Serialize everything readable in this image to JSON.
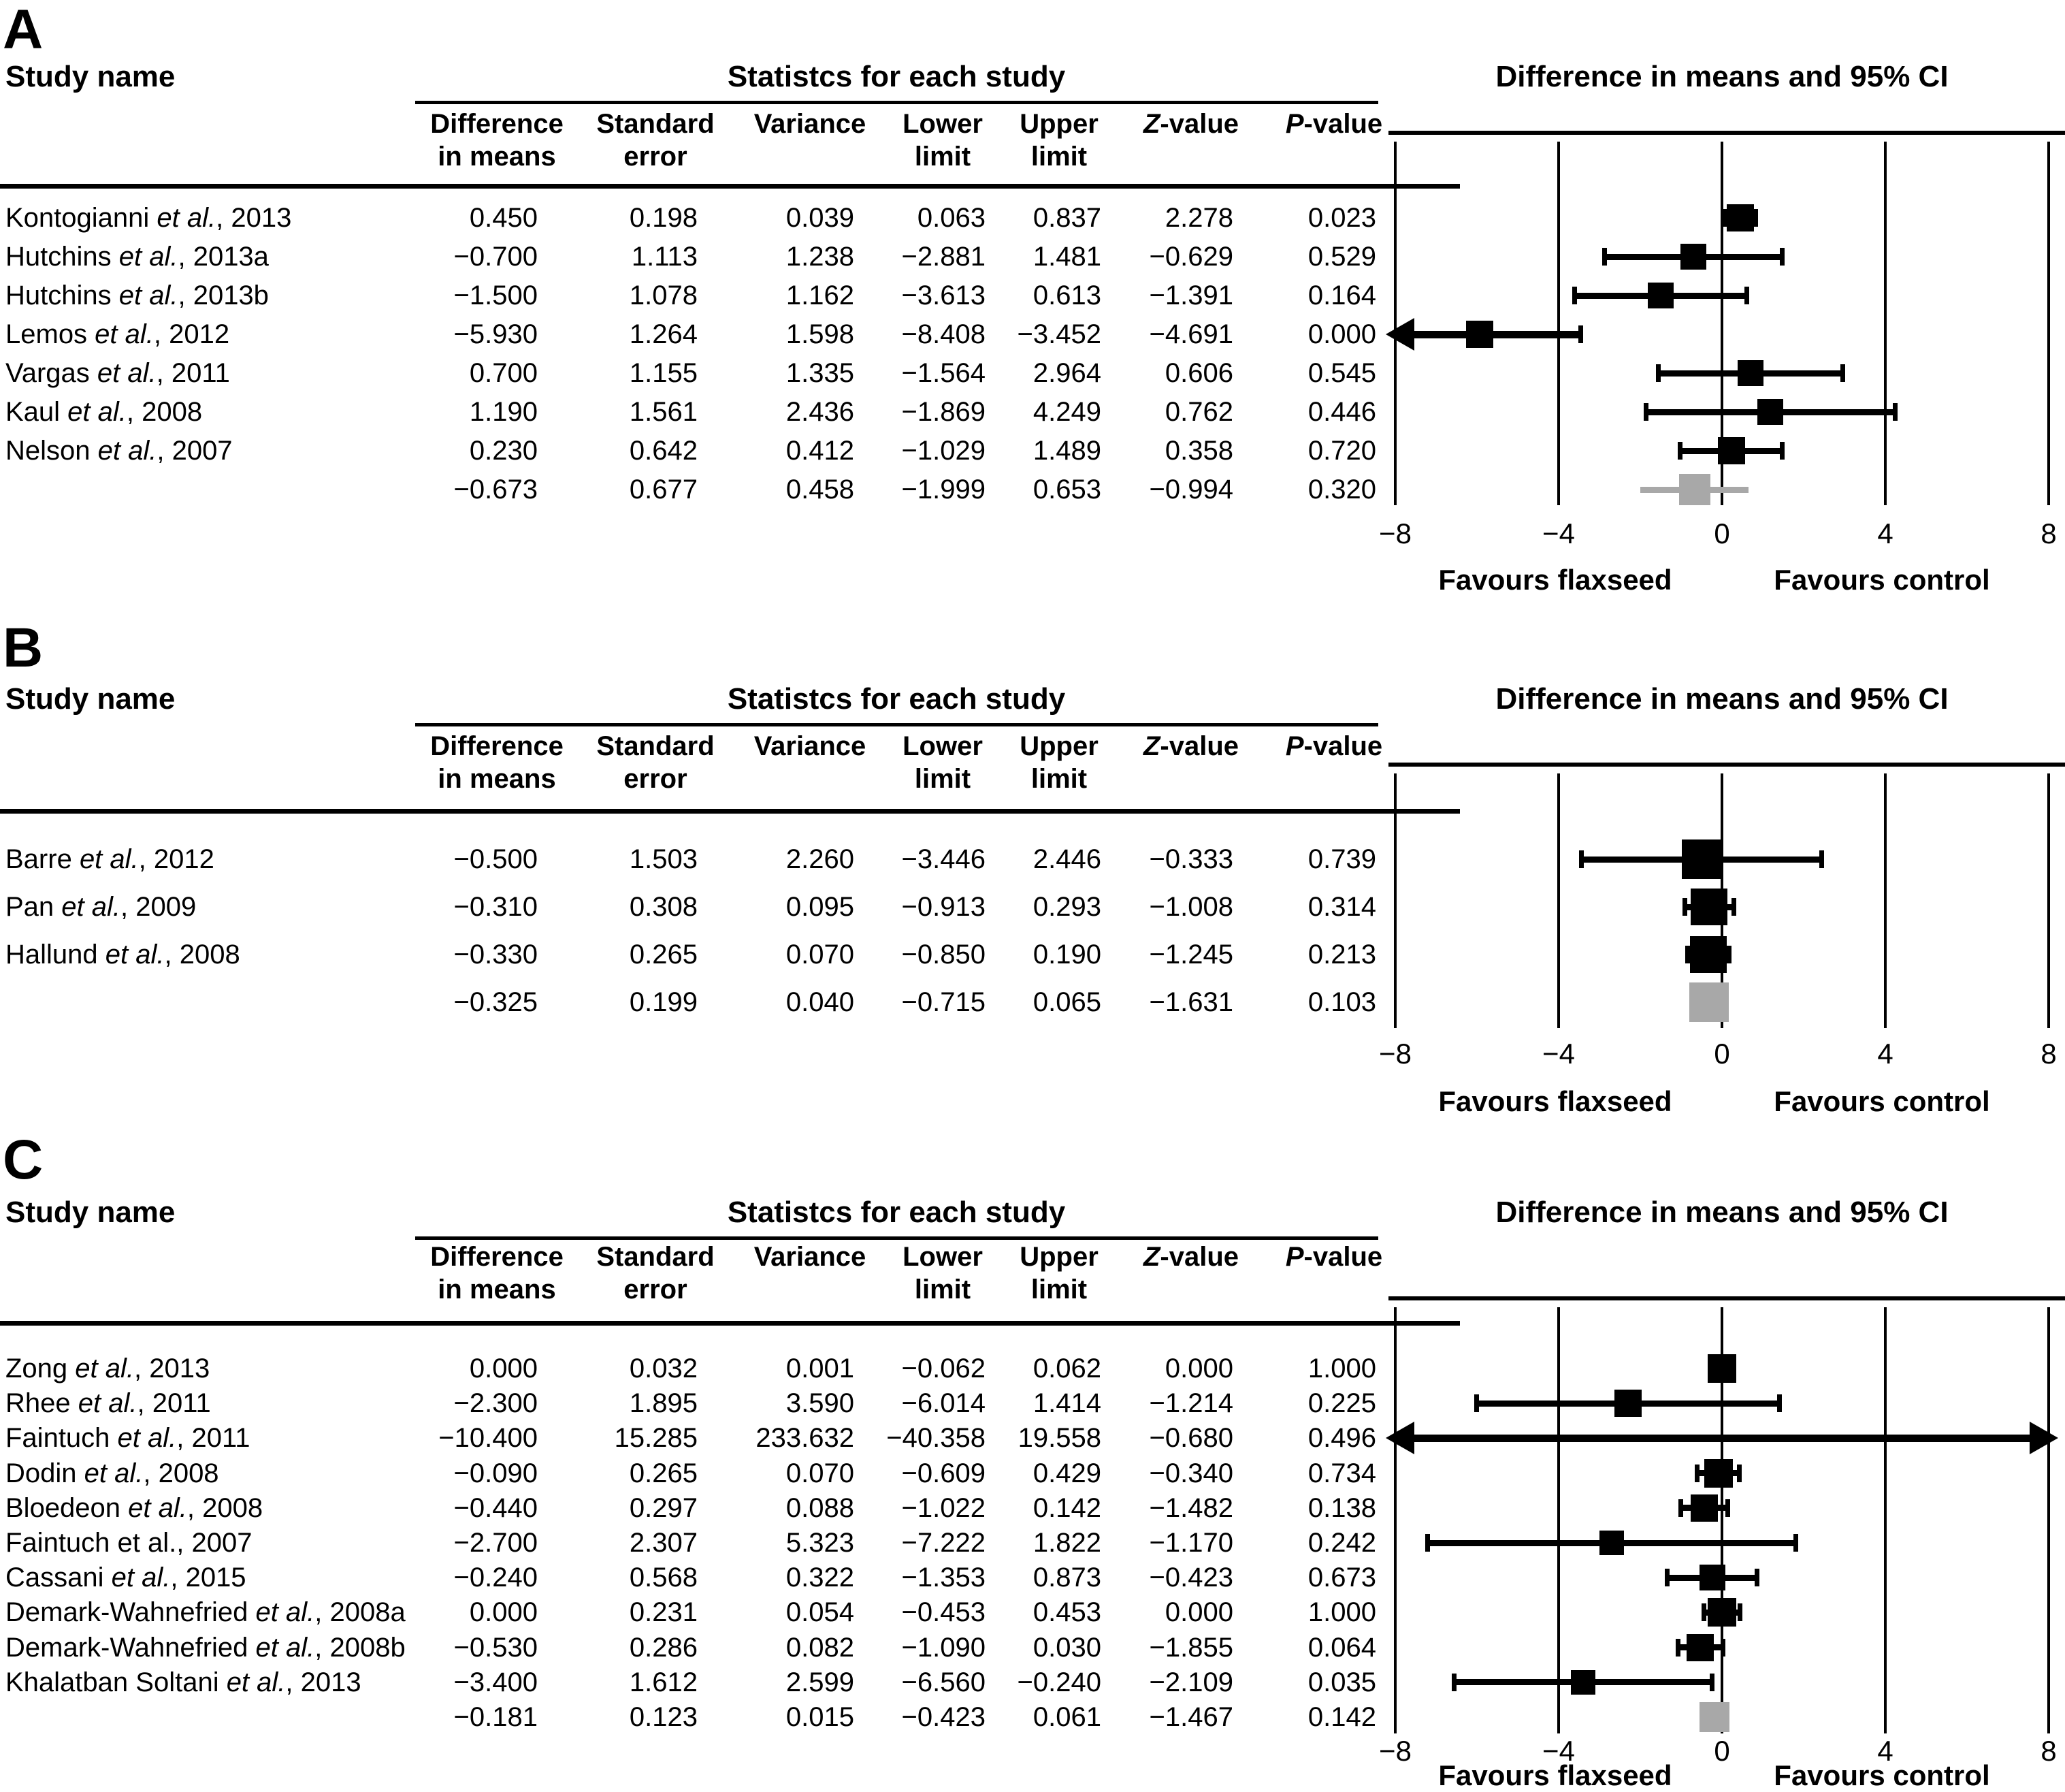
{
  "shared": {
    "study_name_header": "Study name",
    "stats_header": "Statistcs for each study",
    "plot_header": "Difference in means and 95% CI",
    "favours_left": "Favours flaxseed",
    "favours_right": "Favours control",
    "columns": [
      {
        "key": "difference-in-means",
        "line1": "Difference",
        "line2": "in means",
        "line1_italic": ""
      },
      {
        "key": "standard-error",
        "line1": "Standard",
        "line2": "error",
        "line1_italic": ""
      },
      {
        "key": "variance",
        "line1": "Variance",
        "line2": "",
        "line1_italic": ""
      },
      {
        "key": "lower-limit",
        "line1": "Lower",
        "line2": "limit",
        "line1_italic": ""
      },
      {
        "key": "upper-limit",
        "line1": "Upper",
        "line2": "limit",
        "line1_italic": ""
      },
      {
        "key": "z-value",
        "line1": "-value",
        "line2": "",
        "line1_italic": "Z"
      },
      {
        "key": "p-value",
        "line1": "-value",
        "line2": "",
        "line1_italic": "P"
      }
    ],
    "axis": {
      "min": -8,
      "max": 8,
      "ticks": [
        -8,
        -4,
        0,
        4,
        8
      ],
      "tick_labels": [
        "−8",
        "−4",
        "0",
        "4",
        "8"
      ]
    },
    "colors": {
      "effect_square": "#000000",
      "summary_square": "#a8a8a8",
      "summary_line": "#a8a8a8",
      "text": "#000000",
      "background": "#ffffff"
    }
  },
  "chart_data": [
    {
      "type": "scatter",
      "subtype": "forest_plot",
      "panel_label": "A",
      "xlim": [
        -8,
        8
      ],
      "grid": true,
      "stat_fields": [
        "difference_in_means",
        "standard_error",
        "variance",
        "lower_limit",
        "upper_limit",
        "z_value",
        "p_value"
      ],
      "studies": [
        {
          "name_pre": "Kontogianni ",
          "name_italic": "et al.",
          "name_post": ", 2013",
          "stats": [
            "0.450",
            "0.198",
            "0.039",
            "0.063",
            "0.837",
            "2.278",
            "0.023"
          ],
          "marker_size": 40
        },
        {
          "name_pre": "Hutchins ",
          "name_italic": "et al.",
          "name_post": ", 2013a",
          "stats": [
            "−0.700",
            "1.113",
            "1.238",
            "−2.881",
            "1.481",
            "−0.629",
            "0.529"
          ],
          "marker_size": 38
        },
        {
          "name_pre": "Hutchins ",
          "name_italic": "et al.",
          "name_post": ", 2013b",
          "stats": [
            "−1.500",
            "1.078",
            "1.162",
            "−3.613",
            "0.613",
            "−1.391",
            "0.164"
          ],
          "marker_size": 38
        },
        {
          "name_pre": "Lemos ",
          "name_italic": "et al.",
          "name_post": ", 2012",
          "stats": [
            "−5.930",
            "1.264",
            "1.598",
            "−8.408",
            "−3.452",
            "−4.691",
            "0.000"
          ],
          "marker_size": 40
        },
        {
          "name_pre": "Vargas ",
          "name_italic": "et al.",
          "name_post": ", 2011",
          "stats": [
            "0.700",
            "1.155",
            "1.335",
            "−1.564",
            "2.964",
            "0.606",
            "0.545"
          ],
          "marker_size": 38
        },
        {
          "name_pre": "Kaul ",
          "name_italic": "et al.",
          "name_post": ", 2008",
          "stats": [
            "1.190",
            "1.561",
            "2.436",
            "−1.869",
            "4.249",
            "0.762",
            "0.446"
          ],
          "marker_size": 38
        },
        {
          "name_pre": "Nelson ",
          "name_italic": "et al.",
          "name_post": ", 2007",
          "stats": [
            "0.230",
            "0.642",
            "0.412",
            "−1.029",
            "1.489",
            "0.358",
            "0.720"
          ],
          "marker_size": 40
        }
      ],
      "overall": {
        "stats": [
          "−0.673",
          "0.677",
          "0.458",
          "−1.999",
          "0.653",
          "−0.994",
          "0.320"
        ],
        "marker_size": 46
      }
    },
    {
      "type": "scatter",
      "subtype": "forest_plot",
      "panel_label": "B",
      "xlim": [
        -8,
        8
      ],
      "grid": true,
      "stat_fields": [
        "difference_in_means",
        "standard_error",
        "variance",
        "lower_limit",
        "upper_limit",
        "z_value",
        "p_value"
      ],
      "studies": [
        {
          "name_pre": "Barre ",
          "name_italic": "et al.",
          "name_post": ", 2012",
          "stats": [
            "−0.500",
            "1.503",
            "2.260",
            "−3.446",
            "2.446",
            "−0.333",
            "0.739"
          ],
          "marker_size": 58
        },
        {
          "name_pre": "Pan ",
          "name_italic": "et al.",
          "name_post": ", 2009",
          "stats": [
            "−0.310",
            "0.308",
            "0.095",
            "−0.913",
            "0.293",
            "−1.008",
            "0.314"
          ],
          "marker_size": 54
        },
        {
          "name_pre": "Hallund ",
          "name_italic": "et al.",
          "name_post": ", 2008",
          "stats": [
            "−0.330",
            "0.265",
            "0.070",
            "−0.850",
            "0.190",
            "−1.245",
            "0.213"
          ],
          "marker_size": 54
        }
      ],
      "overall": {
        "stats": [
          "−0.325",
          "0.199",
          "0.040",
          "−0.715",
          "0.065",
          "−1.631",
          "0.103"
        ],
        "marker_size": 58
      }
    },
    {
      "type": "scatter",
      "subtype": "forest_plot",
      "panel_label": "C",
      "xlim": [
        -8,
        8
      ],
      "grid": true,
      "stat_fields": [
        "difference_in_means",
        "standard_error",
        "variance",
        "lower_limit",
        "upper_limit",
        "z_value",
        "p_value"
      ],
      "studies": [
        {
          "name_pre": "Zong ",
          "name_italic": "et al.",
          "name_post": ", 2013",
          "stats": [
            "0.000",
            "0.032",
            "0.001",
            "−0.062",
            "0.062",
            "0.000",
            "1.000"
          ],
          "marker_size": 42
        },
        {
          "name_pre": "Rhee ",
          "name_italic": "et al.",
          "name_post": ", 2011",
          "stats": [
            "−2.300",
            "1.895",
            "3.590",
            "−6.014",
            "1.414",
            "−1.214",
            "0.225"
          ],
          "marker_size": 40
        },
        {
          "name_pre": "Faintuch ",
          "name_italic": "et al.",
          "name_post": ", 2011",
          "stats": [
            "−10.400",
            "15.285",
            "233.632",
            "−40.358",
            "19.558",
            "−0.680",
            "0.496"
          ],
          "marker_size": 0
        },
        {
          "name_pre": "Dodin ",
          "name_italic": "et al.",
          "name_post": ", 2008",
          "stats": [
            "−0.090",
            "0.265",
            "0.070",
            "−0.609",
            "0.429",
            "−0.340",
            "0.734"
          ],
          "marker_size": 42
        },
        {
          "name_pre": "Bloedeon ",
          "name_italic": "et al.",
          "name_post": ", 2008",
          "stats": [
            "−0.440",
            "0.297",
            "0.088",
            "−1.022",
            "0.142",
            "−1.482",
            "0.138"
          ],
          "marker_size": 40
        },
        {
          "name_pre": "Faintuch et al., 2007",
          "name_italic": "",
          "name_post": "",
          "stats": [
            "−2.700",
            "2.307",
            "5.323",
            "−7.222",
            "1.822",
            "−1.170",
            "0.242"
          ],
          "marker_size": 36
        },
        {
          "name_pre": "Cassani ",
          "name_italic": "et al.",
          "name_post": ", 2015",
          "stats": [
            "−0.240",
            "0.568",
            "0.322",
            "−1.353",
            "0.873",
            "−0.423",
            "0.673"
          ],
          "marker_size": 38
        },
        {
          "name_pre": "Demark-Wahnefried ",
          "name_italic": "et al.",
          "name_post": ", 2008a",
          "stats": [
            "0.000",
            "0.231",
            "0.054",
            "−0.453",
            "0.453",
            "0.000",
            "1.000"
          ],
          "marker_size": 42
        },
        {
          "name_pre": "Demark-Wahnefried ",
          "name_italic": "et al.",
          "name_post": ", 2008b",
          "stats": [
            "−0.530",
            "0.286",
            "0.082",
            "−1.090",
            "0.030",
            "−1.855",
            "0.064"
          ],
          "marker_size": 40
        },
        {
          "name_pre": "Khalatban Soltani ",
          "name_italic": "et al.",
          "name_post": ", 2013",
          "stats": [
            "−3.400",
            "1.612",
            "2.599",
            "−6.560",
            "−0.240",
            "−2.109",
            "0.035"
          ],
          "marker_size": 36
        }
      ],
      "overall": {
        "stats": [
          "−0.181",
          "0.123",
          "0.015",
          "−0.423",
          "0.061",
          "−1.467",
          "0.142"
        ],
        "marker_size": 44
      }
    }
  ]
}
